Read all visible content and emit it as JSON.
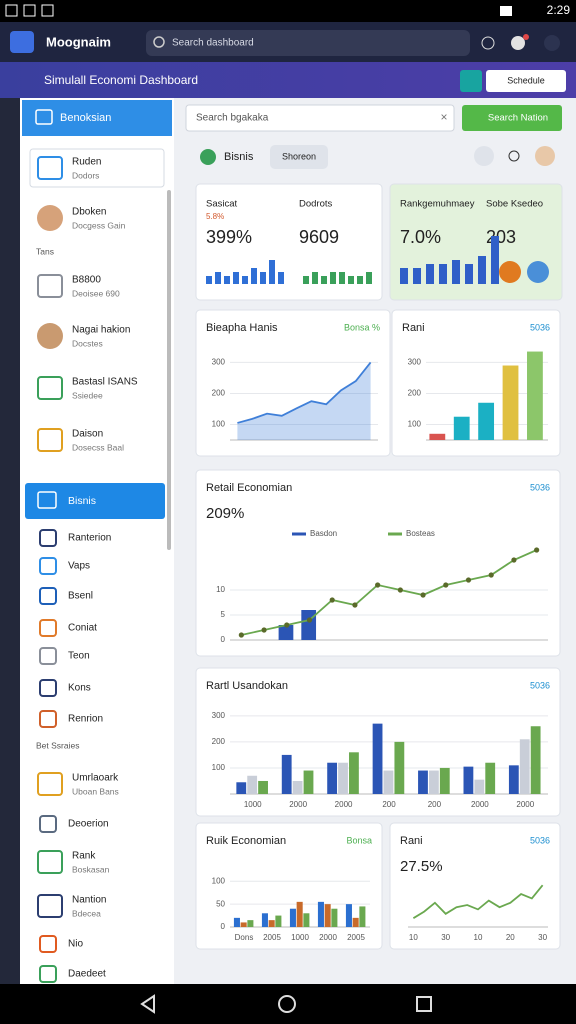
{
  "status_bar": {
    "time": "2:29"
  },
  "app_bar": {
    "title": "Moognaim",
    "search_placeholder": "Search dashboard"
  },
  "sub_header": {
    "title": "Simulall Economi Dashboard",
    "button": "Schedule"
  },
  "sidebar": {
    "header": "Benoksian",
    "items": [
      {
        "title": "Ruden",
        "subtitle": "Dodors"
      },
      {
        "title": "Dboken",
        "subtitle": "Docgess Gain"
      },
      {
        "title": "B8800",
        "subtitle": "Deoisee 690"
      },
      {
        "title": "Nagai hakion",
        "subtitle": "Docstes"
      },
      {
        "title": "Bastasl ISANS",
        "subtitle": "Ssiedee"
      },
      {
        "title": "Daison",
        "subtitle": "Dosecss Baal"
      },
      {
        "title": "Ranterion"
      },
      {
        "title": "Vaps"
      },
      {
        "title": "Bsenl"
      },
      {
        "title": "Coniat"
      },
      {
        "title": "Teon"
      },
      {
        "title": "Kons"
      },
      {
        "title": "Renrion"
      },
      {
        "title": "Umrlaoark",
        "subtitle": "Uboan Bans"
      },
      {
        "title": "Deoerion"
      },
      {
        "title": "Rank",
        "subtitle": "Boskasan"
      },
      {
        "title": "Nantion",
        "subtitle": "Bdecea"
      },
      {
        "title": "Nio"
      },
      {
        "title": "Daedeet"
      }
    ],
    "sections": [
      "Tans",
      "Bet Ssraies"
    ],
    "active_item": "Bisnis"
  },
  "toolbar": {
    "search_placeholder": "Search bgakaka",
    "button": "Search Nation",
    "tab": "Bisnis",
    "chip": "Shoreon"
  },
  "cards": [
    {
      "stats": [
        {
          "label": "Sasicat",
          "delta": "5.8%",
          "value": "399%"
        },
        {
          "label": "Dodrots",
          "value": "9609"
        }
      ],
      "background": "#ffffff",
      "bars": [
        {
          "color": "#2f6fd6",
          "values": [
            2,
            3,
            2,
            3,
            2,
            4,
            3,
            6,
            3
          ]
        },
        {
          "color": "#3aa05a",
          "values": [
            2,
            3,
            2,
            3,
            3,
            2,
            2,
            3
          ]
        }
      ]
    },
    {
      "stats": [
        {
          "label": "Rankgemuhmaey",
          "value": "7.0%"
        },
        {
          "label": "Sobe Ksedeo",
          "value": "203"
        }
      ],
      "background": "#e3f2dc",
      "bars": [
        {
          "color": "#2f5fc8",
          "values": [
            4,
            4,
            5,
            5,
            6,
            5,
            7,
            12
          ]
        }
      ]
    },
    {
      "type": "line",
      "title": "Bieapha Hanis",
      "badge": "Bonsa %",
      "badge_color": "#4caf50",
      "ylim": [
        50,
        340
      ],
      "yticks": [
        100,
        200,
        300
      ],
      "categories": [
        null,
        null,
        null,
        null,
        null,
        null,
        null,
        null,
        null,
        null
      ],
      "series": [
        {
          "color": "#3f7fd8",
          "area": true,
          "values": [
            105,
            118,
            135,
            128,
            152,
            175,
            165,
            210,
            240,
            300
          ]
        }
      ]
    },
    {
      "type": "bar",
      "title": "Rani",
      "badge": "5036",
      "badge_color": "#1d8fd0",
      "ylim": [
        50,
        340
      ],
      "yticks": [
        100,
        200,
        300
      ],
      "categories": [
        null,
        null,
        null,
        null,
        null
      ],
      "series": [
        {
          "colors": [
            "#d9534f",
            "#1bb0c4",
            "#1bb0c4",
            "#e0c040",
            "#8cc66a"
          ],
          "values": [
            70,
            125,
            170,
            290,
            335
          ]
        }
      ]
    },
    {
      "type": "line",
      "title": "Retail Economian",
      "badge": "5036",
      "badge_color": "#1d8fd0",
      "value": "209%",
      "ylim": [
        0,
        22
      ],
      "yticks": [
        0,
        5,
        10
      ],
      "categories": [
        null,
        null,
        null,
        null,
        null,
        null,
        null,
        null,
        null,
        null,
        null,
        null,
        null,
        null
      ],
      "series": [
        {
          "name": "Basdon",
          "color": "#2b55b5",
          "type": "bar",
          "values": [
            null,
            null,
            3,
            6,
            null,
            null,
            null,
            null,
            null,
            null,
            null,
            null,
            null,
            null
          ]
        },
        {
          "name": "Bosteas",
          "color": "#6aa84f",
          "type": "line",
          "markers": true,
          "values": [
            1,
            2,
            3,
            4,
            8,
            7,
            11,
            10,
            9,
            11,
            12,
            13,
            16,
            18
          ]
        }
      ]
    },
    {
      "type": "bar",
      "title": "Rartl Usandokan",
      "badge": "5036",
      "badge_color": "#1d8fd0",
      "ylim": [
        0,
        330
      ],
      "yticks": [
        100,
        200,
        300
      ],
      "categories": [
        "1000",
        "2000",
        "2000",
        "200",
        "200",
        "2000",
        "2000"
      ],
      "series": [
        {
          "color": "#2b55b5",
          "values": [
            45,
            150,
            120,
            270,
            90,
            105,
            110
          ]
        },
        {
          "color": "#c9ced8",
          "values": [
            70,
            50,
            120,
            90,
            90,
            55,
            210
          ]
        },
        {
          "color": "#6aa84f",
          "values": [
            50,
            90,
            160,
            200,
            100,
            120,
            260
          ]
        }
      ]
    },
    {
      "type": "bar",
      "title": "Ruik Economian",
      "badge": "Bonsa",
      "badge_color": "#4caf50",
      "ylim": [
        0,
        140
      ],
      "yticks": [
        0,
        50,
        100
      ],
      "categories": [
        "Dons",
        "2005",
        "1000",
        "2000",
        "2005"
      ],
      "series": [
        {
          "color": "#2b6fd0",
          "values": [
            20,
            30,
            40,
            55,
            50
          ]
        },
        {
          "color": "#c86a2a",
          "values": [
            10,
            15,
            55,
            50,
            20
          ]
        },
        {
          "color": "#6aa84f",
          "values": [
            15,
            25,
            30,
            40,
            45
          ]
        }
      ]
    },
    {
      "type": "line",
      "title": "Rani",
      "badge": "5036",
      "badge_color": "#1d8fd0",
      "value": "27.5%",
      "ylim": [
        0,
        100
      ],
      "yticks": [],
      "categories": [
        "10",
        null,
        null,
        "30",
        null,
        null,
        "10",
        null,
        null,
        "20",
        null,
        null,
        "30"
      ],
      "series": [
        {
          "color": "#6aa84f",
          "values": [
            20,
            35,
            55,
            30,
            45,
            50,
            40,
            60,
            45,
            55,
            75,
            65,
            95
          ]
        }
      ]
    }
  ]
}
